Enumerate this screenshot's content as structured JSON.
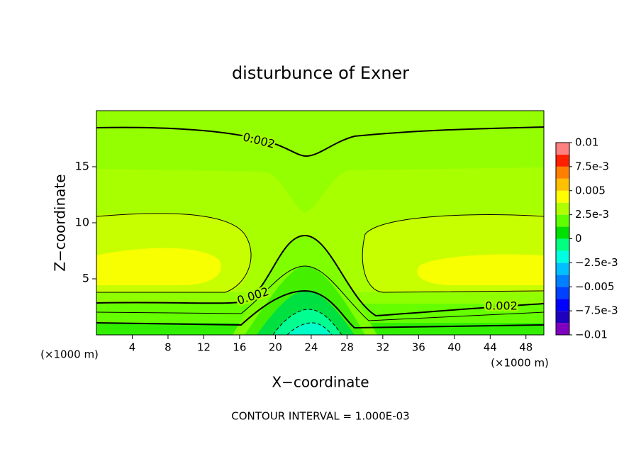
{
  "chart_data": {
    "type": "contour",
    "title": "disturbunce of Exner",
    "x_label": "X−coordinate",
    "y_label": "Z−coordinate",
    "x_unit_label": "(×1000 m)",
    "x_unit_label_right": "(×1000 m)",
    "footer": "CONTOUR INTERVAL = 1.000E-03",
    "xlim": [
      0,
      50
    ],
    "xticks": [
      4,
      8,
      12,
      16,
      20,
      24,
      28,
      32,
      36,
      40,
      44,
      48
    ],
    "ylim": [
      0,
      20
    ],
    "yticks": [
      5,
      10,
      15
    ],
    "contour_labels": [
      0.002,
      0.002,
      0.002
    ],
    "colorbar": {
      "lim": [
        -0.01,
        0.01
      ],
      "ticks": [
        0.01,
        {
          "value": 0.0075,
          "label": "7.5e-3"
        },
        0.005,
        {
          "value": 0.0025,
          "label": "2.5e-3"
        },
        0,
        {
          "value": -0.0025,
          "label": "−2.5e-3"
        },
        {
          "value": -0.005,
          "label": "−0.005"
        },
        {
          "value": -0.0075,
          "label": "−7.5e-3"
        },
        {
          "value": -0.01,
          "label": "−0.01"
        }
      ],
      "colors": [
        "#8000c0",
        "#2000c0",
        "#0000ff",
        "#0040ff",
        "#0080ff",
        "#00c0ff",
        "#00ffe0",
        "#00ff80",
        "#00e000",
        "#60ff00",
        "#b0ff00",
        "#ffff00",
        "#ffc000",
        "#ff8000",
        "#ff2000",
        "#ff8080"
      ]
    }
  }
}
